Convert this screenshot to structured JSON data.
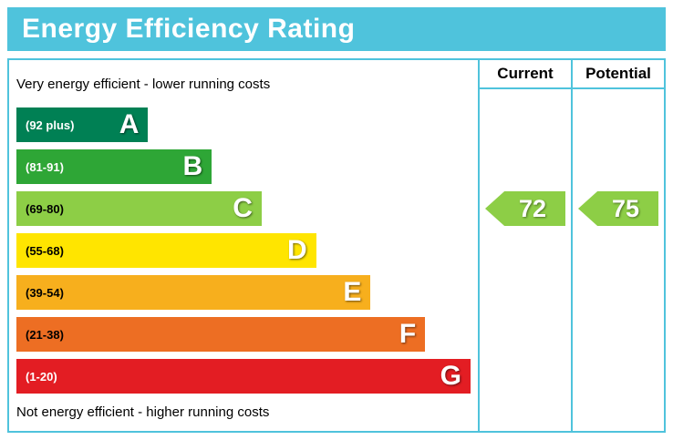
{
  "title": "Energy Efficiency Rating",
  "top_note": "Very energy efficient - lower running costs",
  "bottom_note": "Not energy efficient - higher running costs",
  "columns": {
    "current": "Current",
    "potential": "Potential"
  },
  "colors": {
    "accent": "#4fc3dc",
    "letter_color": "#ffffff",
    "background": "#ffffff",
    "text": "#000000"
  },
  "chart_data": {
    "type": "bar",
    "orientation": "horizontal",
    "title": "Energy Efficiency Rating",
    "categories": [
      "A",
      "B",
      "C",
      "D",
      "E",
      "F",
      "G"
    ],
    "bands": [
      {
        "letter": "A",
        "range": "(92 plus)",
        "min": 92,
        "max": 100,
        "color": "#008054",
        "range_color": "#ffffff",
        "width_pct": 29
      },
      {
        "letter": "B",
        "range": "(81-91)",
        "min": 81,
        "max": 91,
        "color": "#2ea636",
        "range_color": "#ffffff",
        "width_pct": 43
      },
      {
        "letter": "C",
        "range": "(69-80)",
        "min": 69,
        "max": 80,
        "color": "#8dce46",
        "range_color": "#000000",
        "width_pct": 54
      },
      {
        "letter": "D",
        "range": "(55-68)",
        "min": 55,
        "max": 68,
        "color": "#ffe500",
        "range_color": "#000000",
        "width_pct": 66
      },
      {
        "letter": "E",
        "range": "(39-54)",
        "min": 39,
        "max": 54,
        "color": "#f7af1d",
        "range_color": "#000000",
        "width_pct": 78
      },
      {
        "letter": "F",
        "range": "(21-38)",
        "min": 21,
        "max": 38,
        "color": "#ed6e23",
        "range_color": "#000000",
        "width_pct": 90
      },
      {
        "letter": "G",
        "range": "(1-20)",
        "min": 1,
        "max": 20,
        "color": "#e31d23",
        "range_color": "#ffffff",
        "width_pct": 100
      }
    ],
    "current": {
      "label": "Current",
      "value": 72,
      "band": "C",
      "color": "#8dce46"
    },
    "potential": {
      "label": "Potential",
      "value": 75,
      "band": "C",
      "color": "#8dce46"
    }
  }
}
